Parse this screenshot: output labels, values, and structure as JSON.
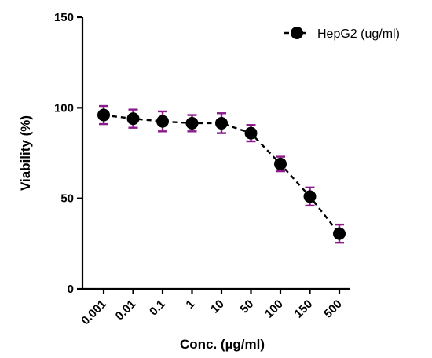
{
  "chart_data": {
    "type": "line",
    "xlabel": "Conc. (µg/ml)",
    "ylabel": "Viability (%)",
    "categories": [
      "0.001",
      "0.01",
      "0.1",
      "1",
      "10",
      "50",
      "100",
      "150",
      "500"
    ],
    "ylim": [
      0,
      150
    ],
    "yticks": [
      0,
      50,
      100,
      150
    ],
    "grid": false,
    "legend_position": "top-right",
    "series": [
      {
        "name": "HepG2 (ug/ml)",
        "values": [
          96,
          94,
          92.5,
          91.5,
          91.5,
          86,
          69,
          51,
          30.5
        ],
        "errors": [
          5,
          5,
          5.5,
          4.5,
          5.5,
          4.5,
          4,
          5,
          5
        ],
        "line_style": "dashed",
        "marker": "circle",
        "color": "#000000",
        "error_color": "#8b1a8b"
      }
    ]
  }
}
